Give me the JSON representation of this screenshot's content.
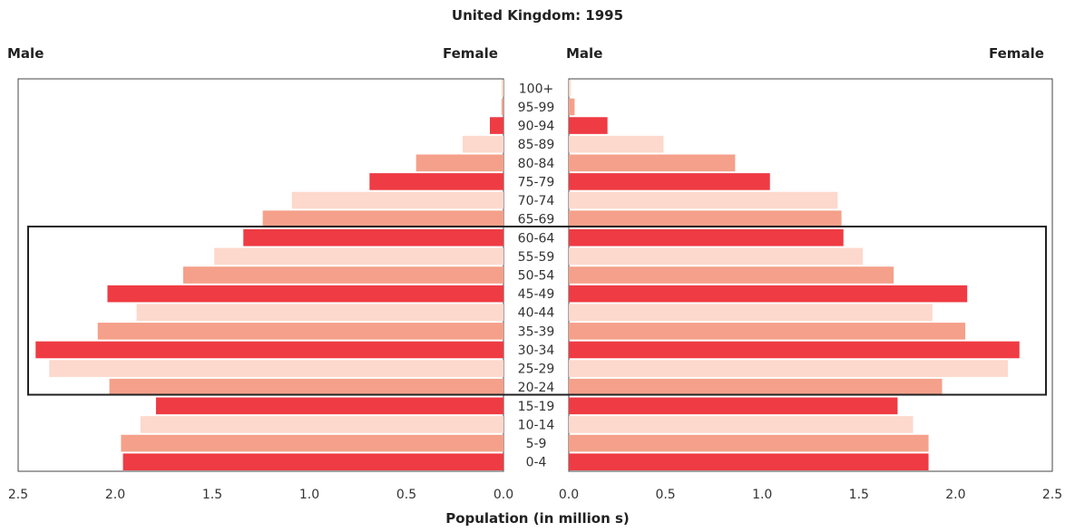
{
  "chart_data": {
    "type": "bar",
    "orientation": "horizontal-population-pyramid",
    "title": "United Kingdom: 1995",
    "xlabel": "Population (in million s)",
    "panels": {
      "left": {
        "male_label": "Male",
        "female_label": "Female",
        "values_from": "male"
      },
      "right": {
        "male_label": "Male",
        "female_label": "Female",
        "values_from": "female"
      }
    },
    "xlim": [
      0,
      2.5
    ],
    "ticks_left": [
      "2.5",
      "2.0",
      "1.5",
      "1.0",
      "0.5",
      "0.0"
    ],
    "ticks_right": [
      "0.0",
      "0.5",
      "1.0",
      "1.5",
      "2.0",
      "2.5"
    ],
    "categories": [
      "100+",
      "95-99",
      "90-94",
      "85-89",
      "80-84",
      "75-79",
      "70-74",
      "65-69",
      "60-64",
      "55-59",
      "50-54",
      "45-49",
      "40-44",
      "35-39",
      "30-34",
      "25-29",
      "20-24",
      "15-19",
      "10-14",
      "5-9",
      "0-4"
    ],
    "series": [
      {
        "name": "Male",
        "values": [
          0.01,
          0.01,
          0.07,
          0.21,
          0.45,
          0.69,
          1.09,
          1.24,
          1.34,
          1.49,
          1.65,
          2.04,
          1.89,
          2.09,
          2.41,
          2.34,
          2.03,
          1.79,
          1.87,
          1.97,
          1.96
        ]
      },
      {
        "name": "Female",
        "values": [
          0.01,
          0.03,
          0.2,
          0.49,
          0.86,
          1.04,
          1.39,
          1.41,
          1.42,
          1.52,
          1.68,
          2.06,
          1.88,
          2.05,
          2.33,
          2.27,
          1.93,
          1.7,
          1.78,
          1.86,
          1.86
        ]
      }
    ],
    "colors": {
      "dark": "#ef3b43",
      "medium": "#f5a08a",
      "light": "#fdd8cc"
    },
    "color_cycle": [
      "light",
      "medium",
      "dark"
    ],
    "highlight_range": [
      "20-24",
      "60-64"
    ],
    "grid": false
  }
}
